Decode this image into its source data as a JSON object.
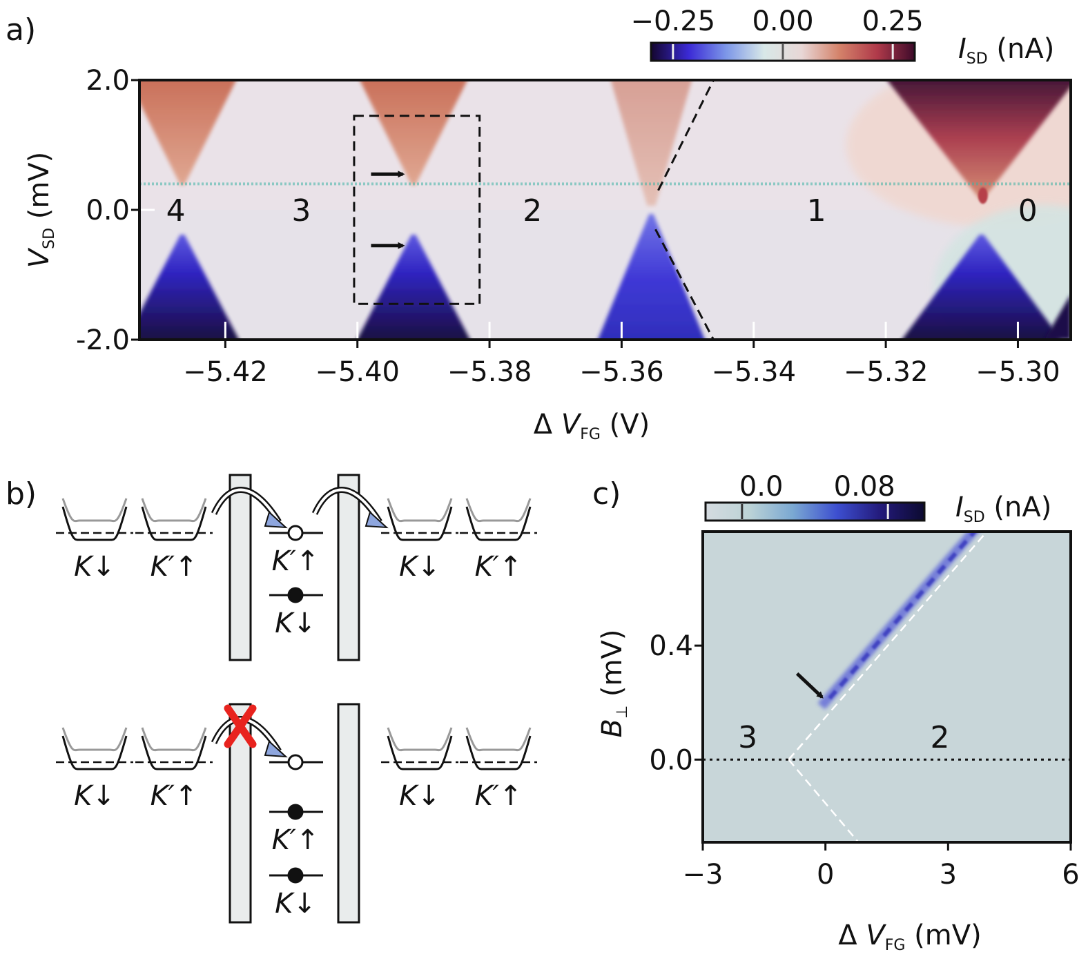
{
  "chart_data": [
    {
      "id": "a",
      "type": "heatmap",
      "panel_label": "a)",
      "xlabel_prefix": "Δ ",
      "xlabel_var": "V",
      "xlabel_sub": "FG",
      "xlabel_unit": " (V)",
      "ylabel_var": "V",
      "ylabel_sub": "SD",
      "ylabel_unit": " (mV)",
      "xlim": [
        -5.433,
        -5.292
      ],
      "ylim": [
        -2.0,
        2.0
      ],
      "xticks": [
        -5.42,
        -5.4,
        -5.38,
        -5.36,
        -5.34,
        -5.32,
        -5.3
      ],
      "xtick_labels": [
        "−5.42",
        "−5.40",
        "−5.38",
        "−5.36",
        "−5.34",
        "−5.32",
        "−5.30"
      ],
      "yticks": [
        2.0,
        0.0,
        -2.0
      ],
      "ytick_labels": [
        "2.0",
        "0.0",
        "-2.0"
      ],
      "colorbar": {
        "label_var": "I",
        "label_sub": "SD",
        "label_unit": " (nA)",
        "range": [
          -0.3,
          0.3
        ],
        "ticks": [
          -0.25,
          0.0,
          0.25
        ],
        "tick_labels": [
          "−0.25",
          "0.00",
          "0.25"
        ],
        "colors": [
          "#14062e",
          "#3b2ad6",
          "#7d97e8",
          "#d8e8e8",
          "#e8d7d6",
          "#d4826a",
          "#b03a4a",
          "#3d0a2a"
        ]
      },
      "diamond_vertices": [
        -5.4265,
        -5.3915,
        -5.3555,
        -5.3055
      ],
      "region_labels": [
        {
          "text": "4",
          "x": -5.4275,
          "y": 0.0
        },
        {
          "text": "3",
          "x": -5.4085,
          "y": 0.0
        },
        {
          "text": "2",
          "x": -5.3735,
          "y": 0.0
        },
        {
          "text": "1",
          "x": -5.3305,
          "y": 0.0
        },
        {
          "text": "0",
          "x": -5.2985,
          "y": 0.0
        }
      ],
      "dashed_box": {
        "x": [
          -5.4005,
          -5.3815
        ],
        "y": [
          -1.45,
          1.45
        ]
      },
      "arrows_at": [
        {
          "x": -5.3925,
          "y": 0.55
        },
        {
          "x": -5.3925,
          "y": -0.55
        }
      ],
      "dashed_line_x": [
        -5.3555,
        -5.3465
      ],
      "noise_line_y": 0.4,
      "background_hex": "#e6e2e9"
    },
    {
      "id": "c",
      "type": "heatmap",
      "panel_label": "c)",
      "xlabel_prefix": "Δ ",
      "xlabel_var": "V",
      "xlabel_sub": "FG",
      "xlabel_unit": " (mV)",
      "ylabel_var": "B",
      "ylabel_sub": "⊥",
      "ylabel_unit": " (mV)",
      "xlim": [
        -3,
        6
      ],
      "ylim": [
        -0.29,
        0.8
      ],
      "xticks": [
        -3,
        0,
        3,
        6
      ],
      "xtick_labels": [
        "−3",
        "0",
        "3",
        "6"
      ],
      "yticks": [
        0.4,
        0.0
      ],
      "ytick_labels": [
        "0.4",
        "0.0"
      ],
      "colorbar": {
        "label_var": "I",
        "label_sub": "SD",
        "label_unit": " (nA)",
        "range": [
          -0.02,
          0.1
        ],
        "ticks": [
          0.0,
          0.08
        ],
        "tick_labels": [
          "0.0",
          "0.08"
        ],
        "colors": [
          "#d5dbe0",
          "#bcd3d6",
          "#7aa8d2",
          "#3d4fd0",
          "#231a7a",
          "#0c0a30"
        ]
      },
      "vertex": {
        "x": -0.9,
        "y": 0.0
      },
      "line_slope_mV_per_mV": 0.165,
      "arrow_at": {
        "x": 0.05,
        "y": 0.2
      },
      "region_labels": [
        {
          "text": "3",
          "x": -1.9,
          "y": 0.08
        },
        {
          "text": "2",
          "x": 2.8,
          "y": 0.08
        }
      ],
      "background_hex": "#c8d6d9"
    }
  ],
  "diagram_b": {
    "panel_label": "b)",
    "top": {
      "left_leads": [
        {
          "label": "K↓"
        },
        {
          "label": "K′↑"
        }
      ],
      "right_leads": [
        {
          "label": "K↓"
        },
        {
          "label": "K′↑"
        }
      ],
      "dot_levels": [
        {
          "label": "K′↑",
          "filled": false
        },
        {
          "label": "K↓",
          "filled": true
        }
      ],
      "tunneling_blocked": false
    },
    "bottom": {
      "left_leads": [
        {
          "label": "K↓"
        },
        {
          "label": "K′↑"
        }
      ],
      "right_leads": [
        {
          "label": "K↓"
        },
        {
          "label": "K′↑"
        }
      ],
      "dot_levels": [
        {
          "label": "",
          "filled": false
        },
        {
          "label": "K′↑",
          "filled": true
        },
        {
          "label": "K↓",
          "filled": true
        }
      ],
      "tunneling_blocked": true,
      "block_mark_color": "#e8231e"
    }
  }
}
